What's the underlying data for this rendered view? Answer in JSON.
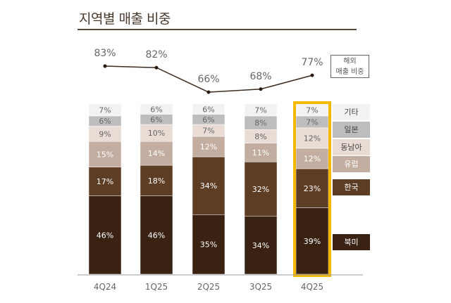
{
  "title": "지역별 매출 비중",
  "chart_data": {
    "type": "bar",
    "stacked": true,
    "title": "지역별 매출 비중",
    "categories": [
      "4Q24",
      "1Q25",
      "2Q25",
      "3Q25",
      "4Q25"
    ],
    "series": [
      {
        "name": "북미",
        "color": "#3a2212",
        "values": [
          46,
          46,
          35,
          34,
          39
        ]
      },
      {
        "name": "한국",
        "color": "#5e3d25",
        "values": [
          17,
          18,
          34,
          32,
          23
        ]
      },
      {
        "name": "유럽",
        "color": "#c3ada0",
        "values": [
          15,
          14,
          12,
          11,
          12
        ]
      },
      {
        "name": "동남아",
        "color": "#e8dcd4",
        "values": [
          9,
          10,
          7,
          8,
          12
        ]
      },
      {
        "name": "일본",
        "color": "#bdbdbd",
        "values": [
          6,
          6,
          6,
          8,
          7
        ]
      },
      {
        "name": "기타",
        "color": "#f2f2f2",
        "values": [
          7,
          6,
          6,
          7,
          7
        ]
      }
    ],
    "line": {
      "name": "해외 매출 비중",
      "name_lines": [
        "해외",
        "매출 비중"
      ],
      "values": [
        83,
        82,
        66,
        68,
        77
      ]
    },
    "highlight_category": "4Q25",
    "highlight_color": "#f5b800",
    "ylim": [
      0,
      100
    ]
  }
}
